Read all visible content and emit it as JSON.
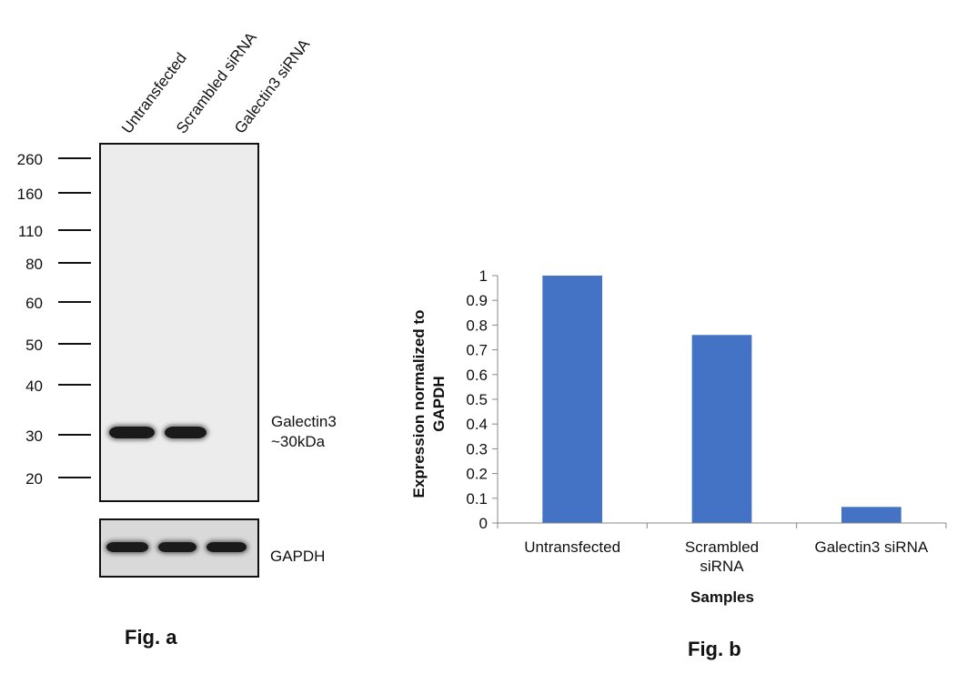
{
  "fig_a": {
    "lane_labels": [
      "Untransfected",
      "Scrambled siRNA",
      "Galectin3 siRNA"
    ],
    "mw_markers": [
      "260",
      "160",
      "110",
      "80",
      "60",
      "50",
      "40",
      "30",
      "20"
    ],
    "target_label_line1": "Galectin3",
    "target_label_line2": "~30kDa",
    "loading_control_label": "GAPDH",
    "caption": "Fig. a"
  },
  "fig_b": {
    "caption": "Fig. b"
  },
  "chart_data": {
    "type": "bar",
    "categories": [
      "Untransfected",
      "Scrambled siRNA",
      "Galectin3 siRNA"
    ],
    "category_lines": [
      [
        "Untransfected"
      ],
      [
        "Scrambled",
        "siRNA"
      ],
      [
        "Galectin3 siRNA"
      ]
    ],
    "values": [
      1.0,
      0.76,
      0.065
    ],
    "xlabel": "Samples",
    "ylabel_lines": [
      "Expression normalized to",
      "GAPDH"
    ],
    "ylim": [
      0,
      1
    ],
    "yticks": [
      "0",
      "0.1",
      "0.2",
      "0.3",
      "0.4",
      "0.5",
      "0.6",
      "0.7",
      "0.8",
      "0.9",
      "1"
    ],
    "grid": false,
    "bar_color": "#4472C4"
  }
}
